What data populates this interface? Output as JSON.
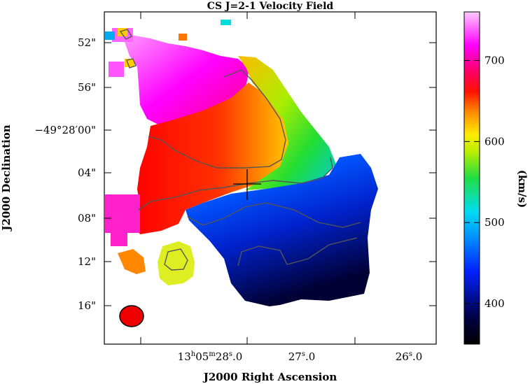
{
  "chart_data": {
    "type": "heatmap",
    "title": "CS J=2-1 Velocity Field",
    "xlabel": "J2000 Right Ascension",
    "ylabel": "J2000 Declination",
    "x_ticks": [
      {
        "h": "13",
        "m": "05",
        "s": "28",
        "frac": "0",
        "label": "13h05m28.0"
      },
      {
        "s": "27",
        "frac": "0",
        "label": "27.0"
      },
      {
        "s": "26",
        "frac": "0",
        "label": "26.0"
      }
    ],
    "y_ticks": [
      "52\"",
      "56\"",
      "−49°28′00\"",
      "04\"",
      "08\"",
      "12\"",
      "16\""
    ],
    "colorbar": {
      "label": "(km/s)",
      "range": [
        350,
        760
      ],
      "ticks": [
        400,
        500,
        600,
        700
      ],
      "colormap": "rainbow (black-blue-cyan-green-yellow-red-magenta-white)"
    },
    "features": {
      "velocity_gradient": "high (~700 km/s) in north-east, low (~380 km/s) in south-west",
      "contours": "grey iso-velocity contours",
      "center_marker": "cross",
      "beam": "red filled ellipse, lower left"
    },
    "colors": {
      "magenta": "#ff00ff",
      "red": "#ff0000",
      "orange": "#ff8800",
      "yellow": "#ffee00",
      "green": "#33dd33",
      "cyan": "#00ccff",
      "blue": "#0033ff",
      "navy": "#000055",
      "black": "#000000"
    }
  }
}
